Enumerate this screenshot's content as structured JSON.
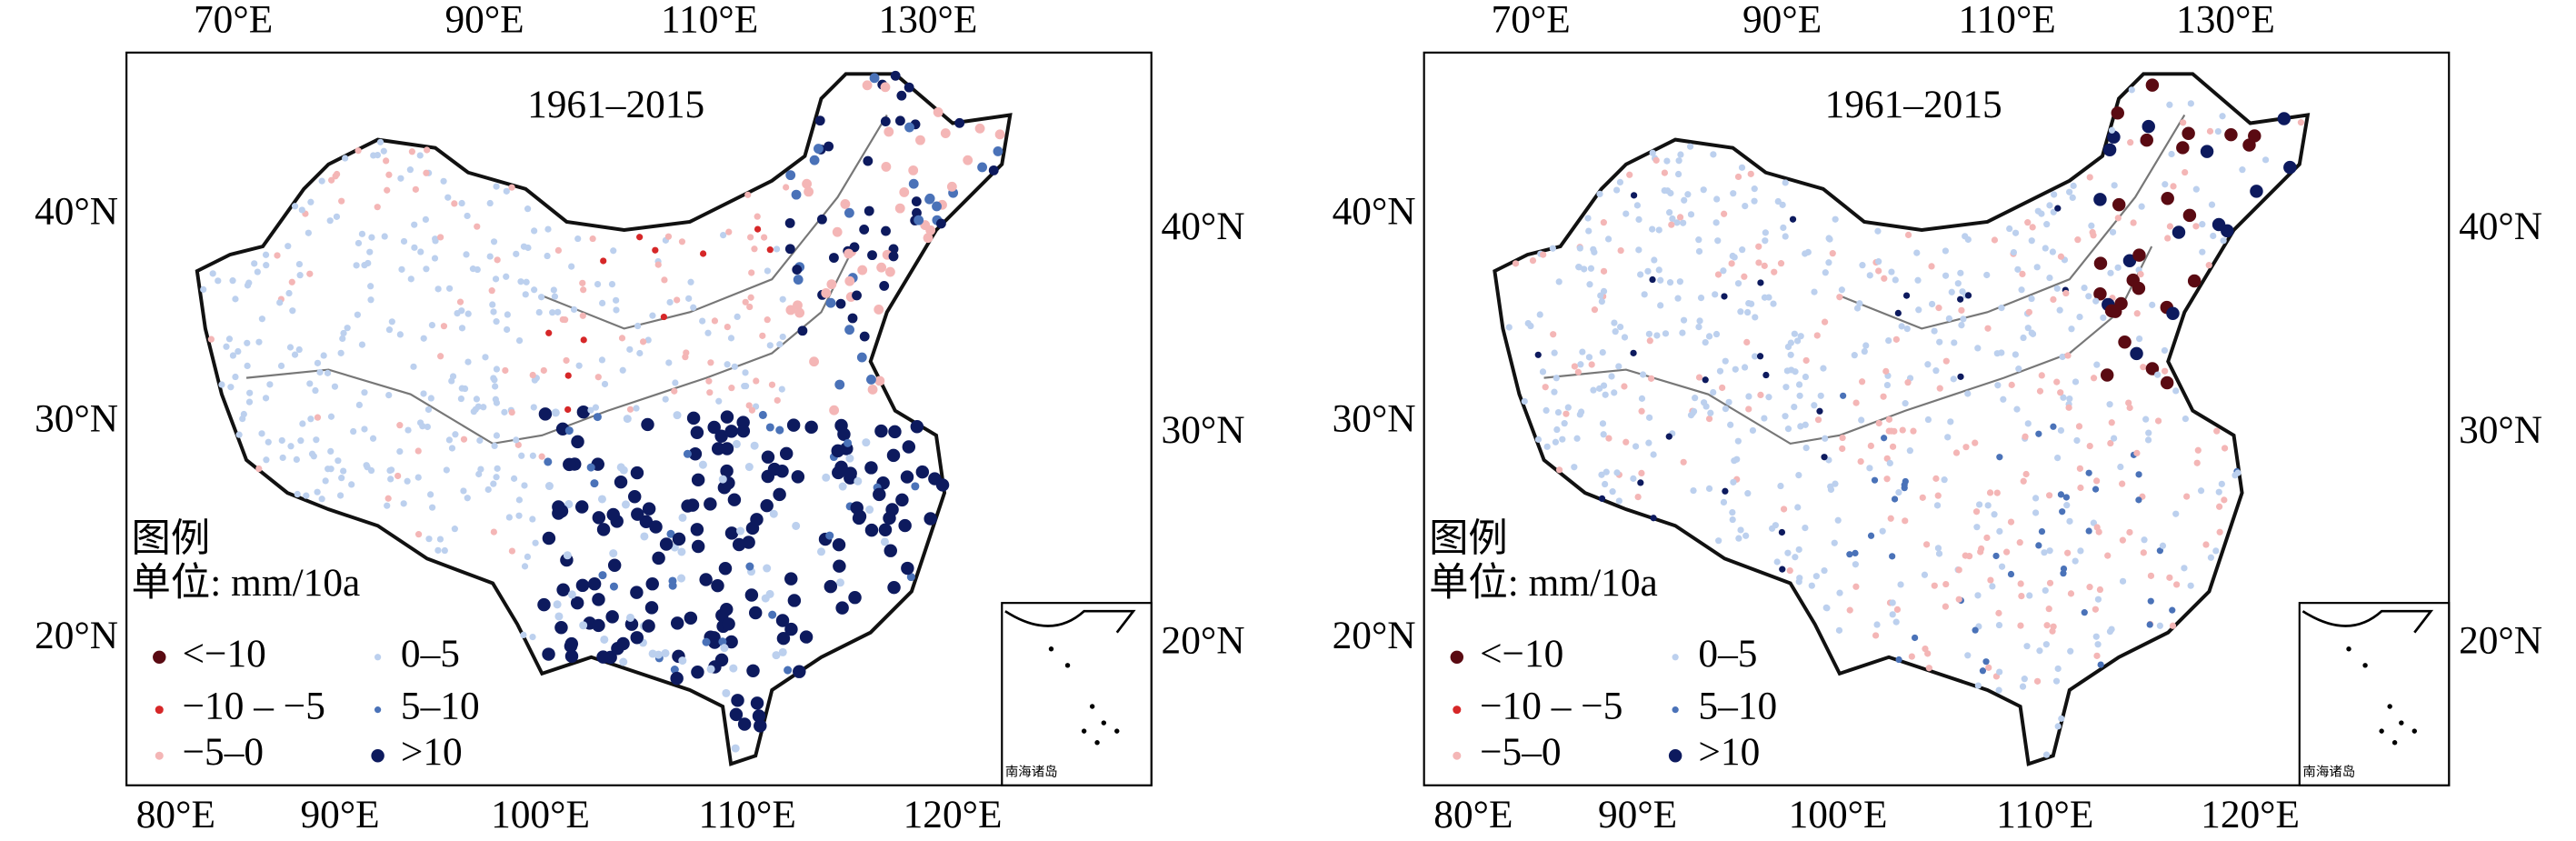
{
  "panels": [
    {
      "title": "1961–2015",
      "top_labels": [
        "70°E",
        "90°E",
        "110°E",
        "130°E"
      ],
      "bottom_labels": [
        "80°E",
        "90°E",
        "100°E",
        "110°E",
        "120°E"
      ],
      "left_labels": [
        "40°N",
        "30°N",
        "20°N"
      ],
      "right_labels": [
        "40°N",
        "30°N",
        "20°N"
      ],
      "legend": {
        "title": "图例",
        "unit": "单位: mm/10a",
        "items": [
          {
            "label": "<−10",
            "color": "#5a0a12"
          },
          {
            "label": "0–5",
            "color": "#bcd0ee"
          },
          {
            "label": "−10 – −5",
            "color": "#d62728"
          },
          {
            "label": "5–10",
            "color": "#4a72b8"
          },
          {
            "label": "−5–0",
            "color": "#f4b6b6"
          },
          {
            "label": ">10",
            "color": "#0d1a5e"
          }
        ]
      },
      "inset_label": "南海诸岛"
    },
    {
      "title": "1961–2015",
      "top_labels": [
        "70°E",
        "90°E",
        "110°E",
        "130°E"
      ],
      "bottom_labels": [
        "80°E",
        "90°E",
        "100°E",
        "110°E",
        "120°E"
      ],
      "left_labels": [
        "40°N",
        "30°N",
        "20°N"
      ],
      "right_labels": [
        "40°N",
        "30°N",
        "20°N"
      ],
      "legend": {
        "title": "图例",
        "unit": "单位: mm/10a",
        "items": [
          {
            "label": "<−10",
            "color": "#5a0a12"
          },
          {
            "label": "0–5",
            "color": "#bcd0ee"
          },
          {
            "label": "−10 – −5",
            "color": "#d62728"
          },
          {
            "label": "5–10",
            "color": "#4a72b8"
          },
          {
            "label": "−5–0",
            "color": "#f4b6b6"
          },
          {
            "label": ">10",
            "color": "#0d1a5e"
          }
        ]
      },
      "inset_label": "南海诸岛"
    }
  ]
}
